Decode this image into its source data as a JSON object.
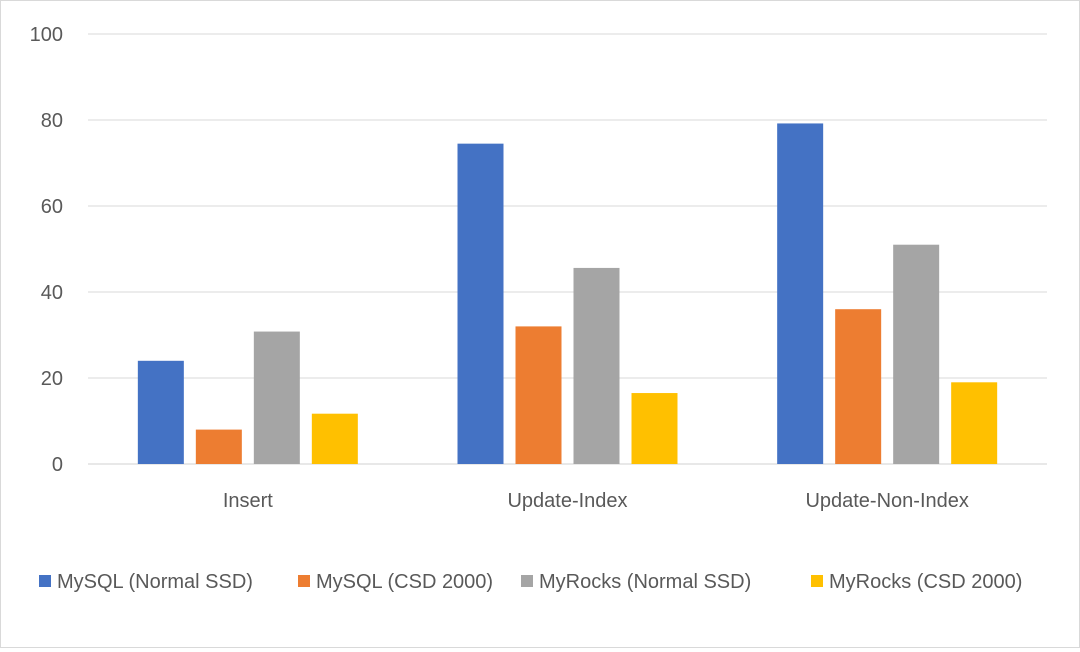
{
  "chart_data": {
    "type": "bar",
    "title": "",
    "xlabel": "",
    "ylabel": "",
    "categories": [
      "Insert",
      "Update-Index",
      "Update-Non-Index"
    ],
    "series": [
      {
        "name": "MySQL (Normal SSD)",
        "color": "#4472C4",
        "values": [
          24,
          74.5,
          79.2
        ]
      },
      {
        "name": "MySQL (CSD 2000)",
        "color": "#ED7D31",
        "values": [
          8,
          32,
          36
        ]
      },
      {
        "name": "MyRocks (Normal SSD)",
        "color": "#A5A5A5",
        "values": [
          30.8,
          45.6,
          51
        ]
      },
      {
        "name": "MyRocks (CSD 2000)",
        "color": "#FFC000",
        "values": [
          11.7,
          16.5,
          19
        ]
      }
    ],
    "ylim": [
      0,
      100
    ],
    "yticks": [
      0,
      20,
      40,
      60,
      80,
      100
    ],
    "grid": true,
    "legend_position": "bottom"
  }
}
